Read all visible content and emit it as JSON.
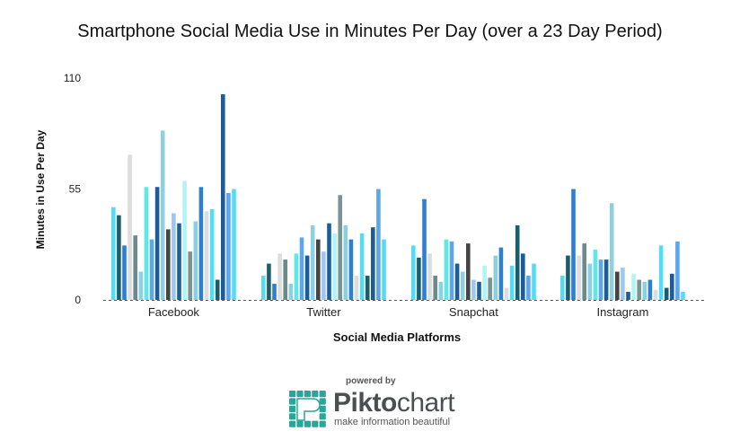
{
  "chart_data": {
    "type": "bar",
    "title": "Smartphone Social Media Use in Minutes Per Day (over a 23 Day Period)",
    "xlabel": "Social Media Platforms",
    "ylabel": "Minutes in Use Per Day",
    "ylim": [
      0,
      110
    ],
    "yticks": [
      "0",
      "55",
      "110"
    ],
    "grid": false,
    "legend": "none",
    "categories": [
      "Facebook",
      "Twitter",
      "Snapchat",
      "Instagram"
    ],
    "colors": [
      "#55dcf5",
      "#1b5e6b",
      "#2f7fd0",
      "#dddddd",
      "#6a8a8c",
      "#8fd0e0",
      "#5ee8e8",
      "#5ca6ea",
      "#1d5c9a",
      "#8ed0e0",
      "#444444",
      "#9cc7f2",
      "#1e5c9a",
      "#b0f5f5",
      "#7a9393",
      "#8ad0e0",
      "#2f7fd0",
      "#dddddd",
      "#55dcf5",
      "#1b5e6b",
      "#1d5c9a",
      "#5ca6ea",
      "#55dcf5"
    ],
    "series": [
      {
        "values": [
          46,
          12,
          27,
          12
        ]
      },
      {
        "values": [
          42,
          18,
          21,
          22
        ]
      },
      {
        "values": [
          27,
          8,
          50,
          55
        ]
      },
      {
        "values": [
          72,
          23,
          23,
          22
        ]
      },
      {
        "values": [
          32,
          20,
          12,
          28
        ]
      },
      {
        "values": [
          14,
          8,
          9,
          18
        ]
      },
      {
        "values": [
          56,
          23,
          30,
          25
        ]
      },
      {
        "values": [
          30,
          31,
          29,
          20
        ]
      },
      {
        "values": [
          56,
          22,
          18,
          20
        ]
      },
      {
        "values": [
          84,
          37,
          14,
          48
        ]
      },
      {
        "values": [
          35,
          30,
          28,
          14
        ]
      },
      {
        "values": [
          43,
          24,
          10,
          16
        ]
      },
      {
        "values": [
          38,
          38,
          9,
          4
        ]
      },
      {
        "values": [
          59,
          33,
          17,
          13
        ]
      },
      {
        "values": [
          24,
          52,
          11,
          10
        ]
      },
      {
        "values": [
          39,
          37,
          22,
          9
        ]
      },
      {
        "values": [
          56,
          30,
          26,
          10
        ]
      },
      {
        "values": [
          44,
          12,
          6,
          5
        ]
      },
      {
        "values": [
          45,
          33,
          17,
          27
        ]
      },
      {
        "values": [
          10,
          12,
          37,
          6
        ]
      },
      {
        "values": [
          102,
          36,
          23,
          13
        ]
      },
      {
        "values": [
          53,
          55,
          12,
          29
        ]
      },
      {
        "values": [
          55,
          30,
          18,
          4
        ]
      }
    ]
  },
  "branding": {
    "powered_by": "powered by",
    "logo_bold": "Pikto",
    "logo_light": "chart",
    "tagline": "make information beautiful",
    "logo_color": "#2aa59a"
  }
}
